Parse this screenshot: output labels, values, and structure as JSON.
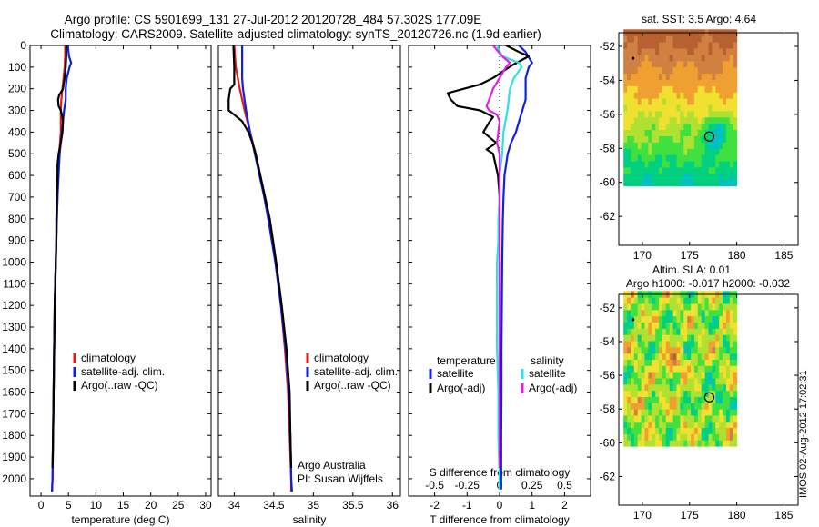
{
  "title": {
    "line1": "Argo profile: CS 5901699_131 27-Jul-2012 20120728_484 57.302S 177.09E",
    "line2": "Climatology: CARS2009. Satellite-adjusted climatology: synTS_20120726.nc (1.9d earlier)"
  },
  "footer_stamp": "IMOS 02-Aug-2012 17:02:31",
  "colors": {
    "climatology": "#e41a1a",
    "satellite": "#1020e0",
    "argo": "#000000",
    "satellite_s": "#30e0e8",
    "argo_s": "#e020e0"
  },
  "chart_data": [
    {
      "type": "line",
      "xlabel": "temperature (deg C)",
      "ylabel": "",
      "xlim": [
        -2,
        31
      ],
      "ylim": [
        2080,
        0
      ],
      "xticks": [
        0,
        5,
        10,
        15,
        20,
        25,
        30
      ],
      "yticks": [
        0,
        100,
        200,
        300,
        400,
        500,
        600,
        700,
        800,
        900,
        1000,
        1100,
        1200,
        1300,
        1400,
        1500,
        1600,
        1700,
        1800,
        1900,
        2000
      ],
      "legend": [
        "climatology",
        "satellite-adj. clim.",
        "Argo(..raw -QC)"
      ],
      "series": [
        {
          "name": "climatology",
          "color": "#e41a1a",
          "depth": [
            0,
            50,
            100,
            150,
            200,
            250,
            300,
            350,
            400,
            500,
            600,
            700,
            800,
            900,
            1000,
            1200,
            1400,
            1600,
            1800,
            2000,
            2060
          ],
          "values": [
            4.4,
            4.4,
            4.3,
            4.1,
            3.9,
            3.7,
            3.6,
            3.6,
            3.6,
            3.3,
            3.1,
            3.0,
            2.9,
            2.8,
            2.7,
            2.5,
            2.4,
            2.3,
            2.2,
            2.1,
            2.0
          ]
        },
        {
          "name": "satellite-adj. clim.",
          "color": "#1020e0",
          "depth": [
            0,
            50,
            80,
            100,
            150,
            200,
            250,
            300,
            350,
            400,
            500,
            600,
            700,
            800,
            900,
            1000,
            1200,
            1400,
            1600,
            1800,
            2000,
            2060
          ],
          "values": [
            4.9,
            5.1,
            5.5,
            5.2,
            4.7,
            4.5,
            4.5,
            4.2,
            4.0,
            3.8,
            3.4,
            3.2,
            3.0,
            2.9,
            2.8,
            2.7,
            2.5,
            2.4,
            2.3,
            2.2,
            2.1,
            2.0
          ]
        },
        {
          "name": "Argo(..raw -QC)",
          "color": "#000000",
          "depth": [
            0,
            50,
            100,
            150,
            200,
            230,
            250,
            280,
            300,
            330,
            350,
            400,
            450,
            500,
            550,
            600,
            700,
            800,
            900,
            1000,
            1200,
            1400,
            1600,
            1800,
            1950
          ],
          "values": [
            4.6,
            4.6,
            4.5,
            4.3,
            4.0,
            3.3,
            3.1,
            3.2,
            3.6,
            3.9,
            4.0,
            3.9,
            3.6,
            3.2,
            3.0,
            3.0,
            2.9,
            2.8,
            2.8,
            2.7,
            2.5,
            2.4,
            2.3,
            2.2,
            2.1
          ]
        }
      ]
    },
    {
      "type": "line",
      "xlabel": "salinity",
      "ylabel": "",
      "xlim": [
        33.8,
        36.1
      ],
      "ylim": [
        2080,
        0
      ],
      "xticks": [
        34,
        34.5,
        35,
        35.5,
        36
      ],
      "xticklabels": [
        "34",
        "34.5",
        "35",
        "35.5",
        "36"
      ],
      "legend": [
        "climatology",
        "satellite-adj. clim.",
        "Argo(..raw -QC)"
      ],
      "annotations": [
        "Argo Australia",
        "PI: Susan Wijffels"
      ],
      "series": [
        {
          "name": "climatology",
          "color": "#e41a1a",
          "depth": [
            0,
            100,
            200,
            300,
            400,
            500,
            600,
            700,
            800,
            1000,
            1200,
            1400,
            1600,
            1800,
            2000,
            2060
          ],
          "values": [
            34.0,
            34.02,
            34.07,
            34.13,
            34.2,
            34.27,
            34.33,
            34.38,
            34.43,
            34.52,
            34.59,
            34.64,
            34.68,
            34.7,
            34.72,
            34.72
          ]
        },
        {
          "name": "satellite-adj. clim.",
          "color": "#1020e0",
          "depth": [
            0,
            50,
            100,
            150,
            200,
            300,
            400,
            500,
            600,
            700,
            800,
            1000,
            1200,
            1400,
            1600,
            1800,
            2000,
            2060
          ],
          "values": [
            34.1,
            34.1,
            34.1,
            34.1,
            34.11,
            34.15,
            34.2,
            34.26,
            34.32,
            34.38,
            34.43,
            34.52,
            34.59,
            34.65,
            34.69,
            34.71,
            34.72,
            34.73
          ]
        },
        {
          "name": "Argo(..raw -QC)",
          "color": "#000000",
          "depth": [
            0,
            100,
            180,
            200,
            250,
            300,
            320,
            350,
            400,
            450,
            500,
            600,
            700,
            800,
            1000,
            1200,
            1400,
            1500,
            1600,
            1800,
            1950
          ],
          "values": [
            33.99,
            34.0,
            34.0,
            33.95,
            33.93,
            33.93,
            34.0,
            34.1,
            34.18,
            34.23,
            34.27,
            34.33,
            34.39,
            34.45,
            34.53,
            34.6,
            34.66,
            34.68,
            34.7,
            34.71,
            34.72
          ]
        }
      ]
    },
    {
      "type": "line",
      "xlabel": "T difference from climatology",
      "ylabel": "",
      "xlabel_top": "S difference from climatology",
      "xlim": [
        -2.8,
        2.8
      ],
      "ylim": [
        2080,
        0
      ],
      "xticks": [
        -2,
        -1,
        0,
        1,
        2
      ],
      "xticks_s": [
        -0.5,
        -0.25,
        0,
        0.25,
        0.5
      ],
      "xticklabels_s": [
        "-0.5",
        "-0.25",
        "0",
        "0.25",
        "0.5"
      ],
      "legend_headers": [
        "temperature",
        "salinity"
      ],
      "legend": [
        "satellite",
        "Argo(-adj)",
        "satellite",
        "Argo(-adj)"
      ],
      "series": [
        {
          "name": "satellite",
          "color": "#1020e0",
          "depth": [
            0,
            30,
            80,
            100,
            150,
            200,
            250,
            300,
            350,
            400,
            450,
            500,
            600,
            700,
            800,
            1000,
            1200,
            1400,
            1600,
            1800,
            2000,
            2050
          ],
          "values": [
            0.6,
            0.8,
            1.0,
            0.9,
            0.8,
            0.8,
            0.8,
            0.7,
            0.6,
            0.5,
            0.35,
            0.25,
            0.15,
            0.12,
            0.1,
            0.08,
            0.07,
            0.06,
            0.06,
            0.05,
            0.05,
            0.05
          ]
        },
        {
          "name": "Argo(-adj)",
          "color": "#000000",
          "depth": [
            0,
            30,
            50,
            90,
            120,
            150,
            180,
            200,
            220,
            250,
            280,
            300,
            330,
            350,
            400,
            450,
            480,
            500,
            600,
            700,
            800,
            1000,
            1200,
            1400,
            1600,
            1800,
            1950
          ],
          "values": [
            0.2,
            0.6,
            0.9,
            0.4,
            0.1,
            -0.2,
            -0.6,
            -1.1,
            -1.6,
            -1.5,
            -1.3,
            -0.6,
            -0.2,
            -0.3,
            -0.5,
            -0.1,
            -0.4,
            -0.2,
            -0.05,
            0.0,
            0.0,
            0.0,
            0.0,
            0.0,
            0.0,
            0.0,
            0.0
          ]
        },
        {
          "name": "satellite",
          "color": "#30e0e8",
          "depth": [
            0,
            50,
            80,
            100,
            150,
            200,
            300,
            400,
            500,
            600,
            700,
            800,
            900,
            1000,
            1200,
            1400,
            1600,
            1800,
            2000,
            2050
          ],
          "values": [
            -0.02,
            0.02,
            0.15,
            0.17,
            0.11,
            0.08,
            0.06,
            0.03,
            0.02,
            0.0,
            0.0,
            -0.01,
            -0.01,
            -0.02,
            -0.02,
            -0.02,
            -0.01,
            -0.01,
            0.0,
            0.0
          ]
        },
        {
          "name": "Argo(-adj)",
          "color": "#e020e0",
          "depth": [
            0,
            50,
            80,
            100,
            150,
            200,
            250,
            280,
            300,
            320,
            350,
            400,
            450,
            500,
            600,
            800,
            1000,
            1200,
            1400,
            1600,
            1800,
            1950
          ],
          "values": [
            -0.05,
            0.02,
            0.08,
            0.05,
            0.0,
            -0.05,
            -0.08,
            -0.1,
            -0.08,
            -0.02,
            0.0,
            -0.01,
            -0.02,
            0.0,
            0.0,
            0.0,
            0.0,
            0.0,
            0.0,
            0.0,
            0.0,
            0.0
          ]
        }
      ]
    },
    {
      "type": "heatmap",
      "title": "sat. SST: 3.5 Argo: 4.64",
      "xlim": [
        167.5,
        186.5
      ],
      "ylim": [
        -63.7,
        -51.2
      ],
      "xticks": [
        170,
        175,
        180,
        185
      ],
      "yticks": [
        -52,
        -54,
        -56,
        -58,
        -60,
        -62
      ],
      "yticklabels": [
        "-52",
        "-54",
        "-56",
        "-58",
        "-60",
        "-62"
      ],
      "field_extent": {
        "lon": [
          168,
          180
        ],
        "lat": [
          -60.2,
          -51
        ]
      },
      "argo_position": {
        "lon": 177.09,
        "lat": -57.302
      },
      "marker_point": {
        "lon": 169.0,
        "lat": -52.7
      },
      "color_scale": [
        "#00c0c0",
        "#00d080",
        "#40e040",
        "#b0e030",
        "#f0e030",
        "#f0a030",
        "#d08040",
        "#b86030"
      ]
    },
    {
      "type": "heatmap",
      "title": "Altim. SLA: 0.01",
      "subtitle": "Argo h1000: -0.017 h2000: -0.032",
      "xlim": [
        167.5,
        186.5
      ],
      "ylim": [
        -63.7,
        -51.2
      ],
      "xticks": [
        170,
        175,
        180,
        185
      ],
      "yticks": [
        -52,
        -54,
        -56,
        -58,
        -60,
        -62
      ],
      "yticklabels": [
        "-52",
        "-54",
        "-56",
        "-58",
        "-60",
        "-62"
      ],
      "field_extent": {
        "lon": [
          168,
          180
        ],
        "lat": [
          -60.2,
          -51
        ]
      },
      "argo_position": {
        "lon": 177.09,
        "lat": -57.302
      },
      "marker_point": {
        "lon": 169.0,
        "lat": -52.7
      },
      "color_scale": [
        "#00c0c0",
        "#00d080",
        "#40e040",
        "#b0e030",
        "#f0e030",
        "#f0a030",
        "#d08040",
        "#b86030"
      ]
    }
  ]
}
